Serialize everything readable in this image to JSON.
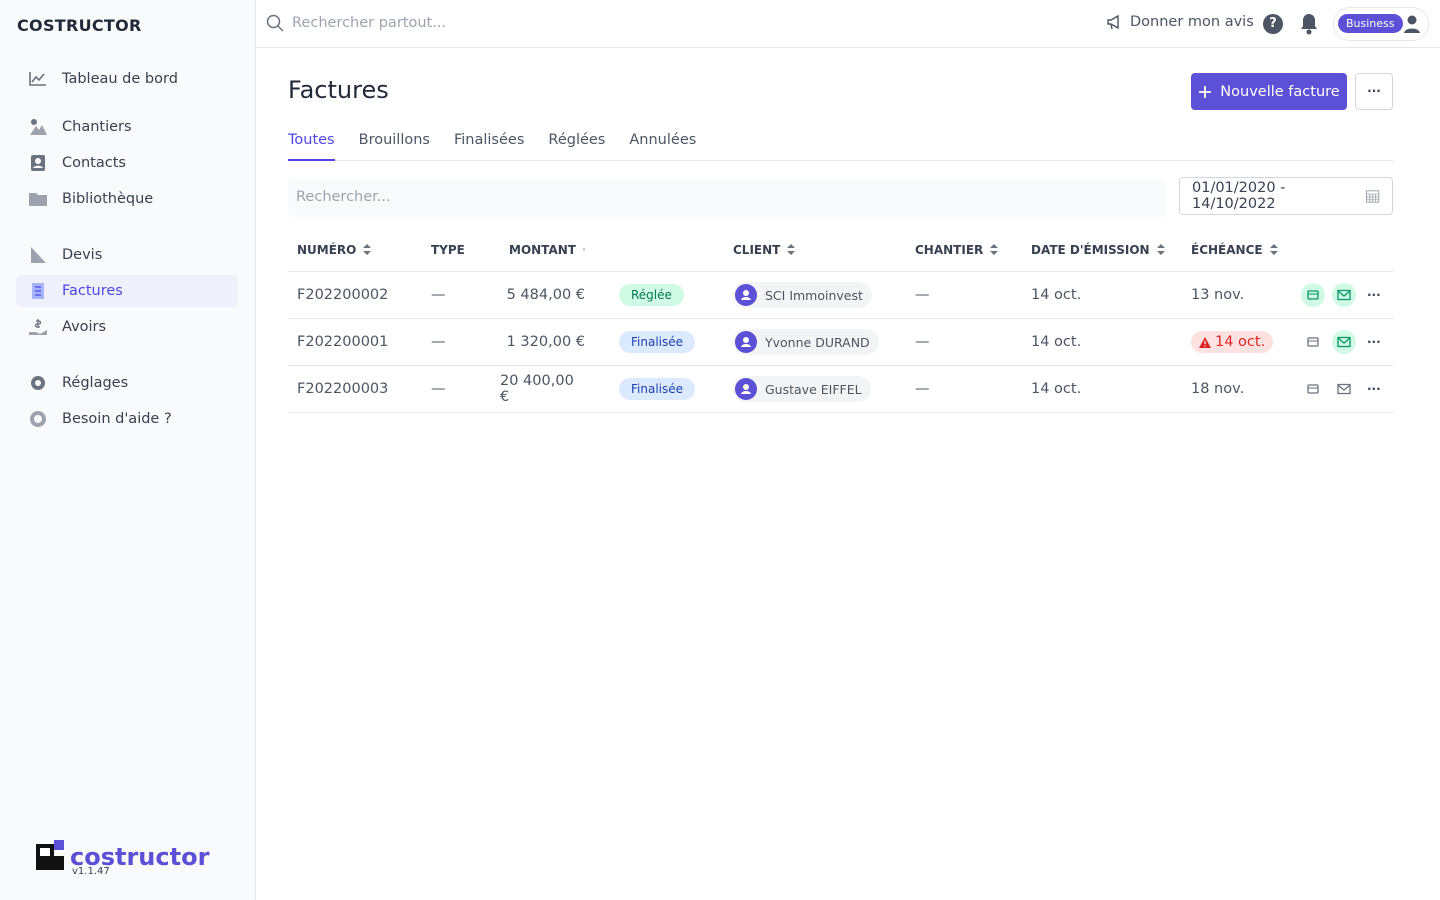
{
  "sidebar": {
    "brand": "COSTRUCTOR",
    "nav": [
      [
        "Tableau de bord"
      ],
      [
        "Chantiers",
        "Contacts",
        "Bibliothèque"
      ],
      [
        "Devis",
        "Factures",
        "Avoirs"
      ],
      [
        "Réglages",
        "Besoin d'aide ?"
      ]
    ],
    "logo": "costructor",
    "version": "v1.1.47"
  },
  "topbar": {
    "search_placeholder": "Rechercher partout...",
    "feedback": "Donner mon avis",
    "help": "?",
    "plan": "Business"
  },
  "header": {
    "title": "Factures",
    "new_button": "Nouvelle facture",
    "more": "···"
  },
  "tabs": [
    "Toutes",
    "Brouillons",
    "Finalisées",
    "Réglées",
    "Annulées"
  ],
  "filters": {
    "search_placeholder": "Rechercher...",
    "date_range": "01/01/2020 - 14/10/2022"
  },
  "table": {
    "columns": [
      "NUMÉRO",
      "TYPE",
      "MONTANT",
      "CLIENT",
      "CHANTIER",
      "DATE D'ÉMISSION",
      "ÉCHÉANCE"
    ],
    "rows": [
      [
        "F202200002",
        "—",
        "5 484,00 €",
        "Réglée",
        "SCI Immoinvest",
        "—",
        "14 oct.",
        "13 nov."
      ],
      [
        "F202200001",
        "—",
        "1 320,00 €",
        "Finalisée",
        "Yvonne DURAND",
        "—",
        "14 oct.",
        "14 oct."
      ],
      [
        "F202200003",
        "—",
        "20 400,00 €",
        "Finalisée",
        "Gustave EIFFEL",
        "—",
        "14 oct.",
        "18 nov."
      ]
    ],
    "row_more": "···"
  }
}
